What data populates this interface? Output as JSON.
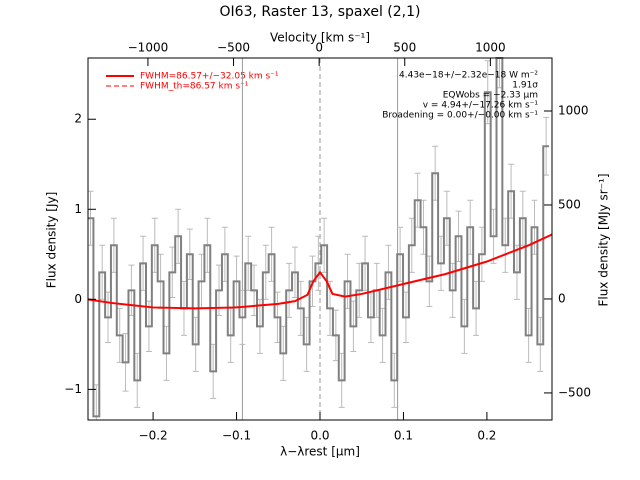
{
  "chart_data": {
    "type": "line",
    "title": "OI63, Raster 13, spaxel (2,1)",
    "xlabel": "λ−λrest [μm]",
    "x2label": "Velocity [km s⁻¹]",
    "ylabel": "Flux density [Jy]",
    "y2label": "Flux density [MJy sr⁻¹]",
    "xlim": [
      -0.278,
      0.278
    ],
    "xticks": [
      {
        "value": -0.2,
        "label": "−0.2"
      },
      {
        "value": -0.1,
        "label": "−0.1"
      },
      {
        "value": 0,
        "label": "0.0"
      },
      {
        "value": 0.1,
        "label": "0.1"
      },
      {
        "value": 0.2,
        "label": "0.2"
      }
    ],
    "x2lim": [
      -1350,
      1360
    ],
    "x2ticks": [
      {
        "value": -1000,
        "label": "−1000"
      },
      {
        "value": -500,
        "label": "−500"
      },
      0,
      500,
      1000
    ],
    "ylim": [
      -1.34,
      2.68
    ],
    "yticks": [
      {
        "value": -1,
        "label": "−1"
      },
      0,
      1,
      2
    ],
    "y2lim": [
      -644,
      1282
    ],
    "y2ticks": [
      {
        "value": -500,
        "label": "−500"
      },
      0,
      500,
      1000
    ],
    "vlines": [
      -0.093,
      0.093
    ],
    "zero_line": 0,
    "series": [
      {
        "name": "spectrum",
        "color": "#808080",
        "error_color": "#bbbbbb",
        "x": [
          -0.275,
          -0.268,
          -0.261,
          -0.254,
          -0.247,
          -0.24,
          -0.233,
          -0.226,
          -0.219,
          -0.212,
          -0.205,
          -0.198,
          -0.191,
          -0.184,
          -0.177,
          -0.17,
          -0.163,
          -0.156,
          -0.149,
          -0.142,
          -0.135,
          -0.128,
          -0.121,
          -0.114,
          -0.107,
          -0.1,
          -0.093,
          -0.086,
          -0.079,
          -0.072,
          -0.065,
          -0.058,
          -0.051,
          -0.044,
          -0.037,
          -0.03,
          -0.023,
          -0.016,
          -0.009,
          -0.002,
          0.005,
          0.012,
          0.019,
          0.026,
          0.033,
          0.04,
          0.047,
          0.054,
          0.061,
          0.068,
          0.075,
          0.082,
          0.089,
          0.096,
          0.103,
          0.11,
          0.117,
          0.124,
          0.131,
          0.138,
          0.145,
          0.152,
          0.159,
          0.166,
          0.173,
          0.18,
          0.187,
          0.194,
          0.201,
          0.208,
          0.215,
          0.222,
          0.229,
          0.236,
          0.243,
          0.25,
          0.257,
          0.264,
          0.271
        ],
        "values": [
          0.9,
          -1.3,
          0.3,
          -0.2,
          0.6,
          -0.4,
          -0.7,
          0.1,
          -0.9,
          0.4,
          -0.3,
          0.6,
          0.2,
          -0.6,
          0.3,
          0.7,
          -0.1,
          0.5,
          -0.5,
          0.2,
          0.6,
          -0.8,
          0.1,
          0.5,
          -0.4,
          0.2,
          -0.2,
          0.4,
          0.1,
          -0.3,
          0.3,
          0.5,
          -0.2,
          -0.6,
          0.1,
          0.3,
          -0.1,
          -0.5,
          0.2,
          0.4,
          0.6,
          -0.1,
          -0.4,
          -0.9,
          0.2,
          -0.3,
          0.1,
          0.4,
          -0.2,
          0.1,
          -0.4,
          0.3,
          -0.9,
          0.5,
          -0.2,
          0.6,
          1.1,
          0.8,
          0.2,
          1.4,
          0.4,
          0.9,
          0.1,
          0.7,
          -0.3,
          0.8,
          -0.1,
          0.5,
          2.3,
          0.7,
          2.7,
          0.6,
          1.2,
          0.3,
          0.9,
          -0.4,
          0.8,
          -0.5,
          1.7
        ],
        "errors": [
          0.3,
          0.35,
          0.3,
          0.28,
          0.3,
          0.3,
          0.32,
          0.28,
          0.3,
          0.3,
          0.28,
          0.3,
          0.3,
          0.3,
          0.28,
          0.3,
          0.3,
          0.28,
          0.3,
          0.3,
          0.3,
          0.3,
          0.28,
          0.3,
          0.3,
          0.28,
          0.3,
          0.3,
          0.28,
          0.3,
          0.3,
          0.3,
          0.28,
          0.3,
          0.3,
          0.28,
          0.3,
          0.3,
          0.28,
          0.3,
          0.3,
          0.3,
          0.28,
          0.3,
          0.3,
          0.28,
          0.3,
          0.3,
          0.28,
          0.3,
          0.3,
          0.3,
          0.3,
          0.3,
          0.28,
          0.3,
          0.3,
          0.3,
          0.28,
          0.3,
          0.3,
          0.3,
          0.3,
          0.28,
          0.3,
          0.3,
          0.3,
          0.3,
          0.35,
          0.3,
          0.35,
          0.3,
          0.3,
          0.3,
          0.3,
          0.3,
          0.3,
          0.3,
          0.32
        ]
      },
      {
        "name": "fit",
        "color": "#ff0000",
        "x": [
          -0.278,
          -0.25,
          -0.2,
          -0.15,
          -0.1,
          -0.05,
          -0.03,
          -0.015,
          -0.008,
          0,
          0.008,
          0.015,
          0.03,
          0.05,
          0.1,
          0.15,
          0.2,
          0.25,
          0.278
        ],
        "values": [
          0.0,
          -0.04,
          -0.09,
          -0.1,
          -0.09,
          -0.05,
          -0.02,
          0.05,
          0.2,
          0.3,
          0.2,
          0.06,
          0.03,
          0.06,
          0.17,
          0.28,
          0.42,
          0.6,
          0.72
        ]
      }
    ],
    "legend": [
      {
        "label": "FWHM=86.57+/−32.05 km s⁻¹",
        "color": "#ff0000",
        "dash": false
      },
      {
        "label": "FWHM_th=86.57 km s⁻¹",
        "color": "#ff0000",
        "dash": true
      }
    ],
    "annotations": [
      "4.43e−18+/−2.32e−18 W m⁻²",
      "1.91σ",
      "EQWobs = −2.33 μm",
      "v = 4.94+/−17.26 km s⁻¹",
      "Broadening = 0.00+/−0.00 km s⁻¹"
    ]
  }
}
